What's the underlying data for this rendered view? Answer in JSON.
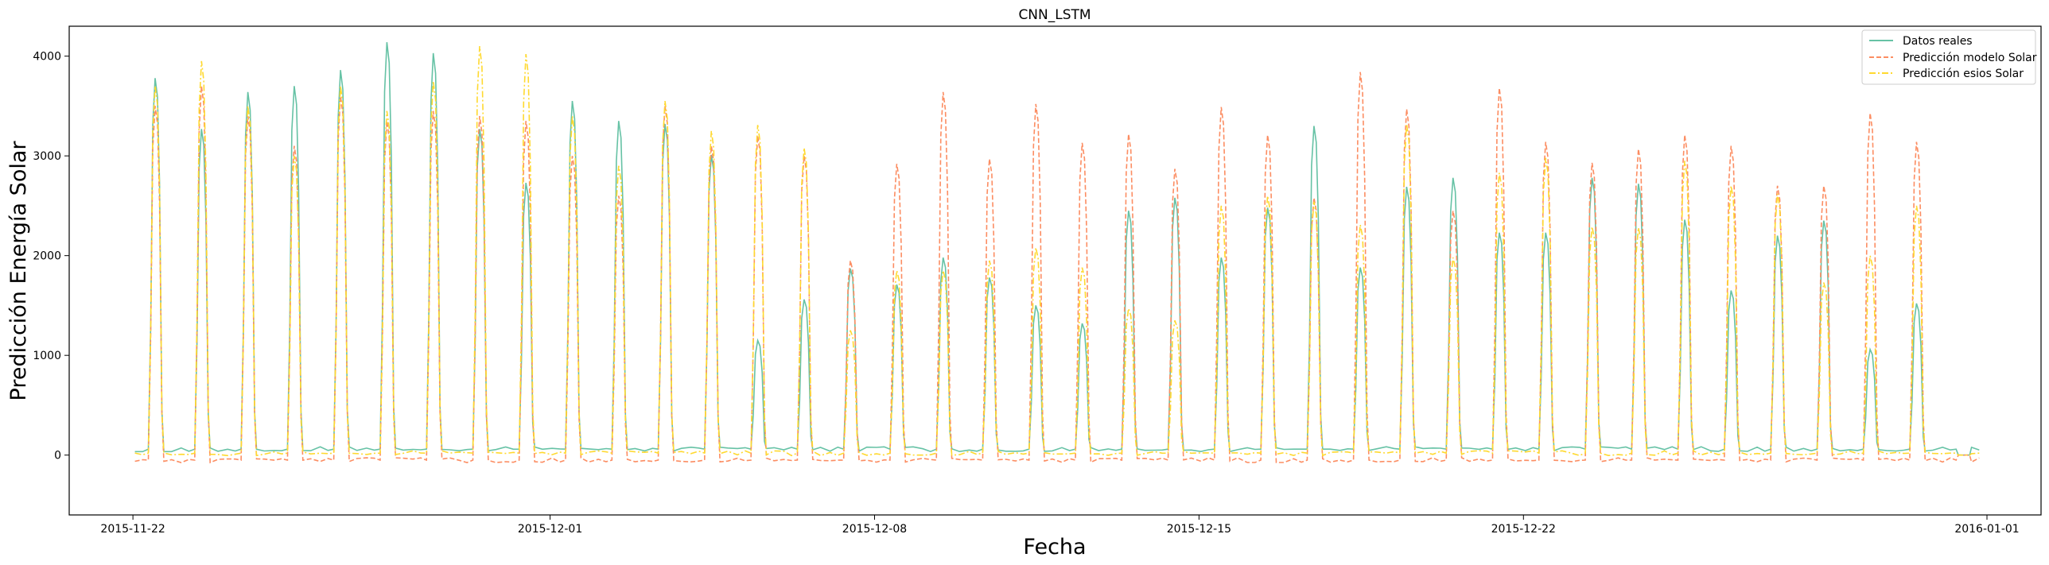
{
  "chart_data": {
    "type": "line",
    "title": "CNN_LSTM",
    "xlabel": "Fecha",
    "ylabel": "Predicción Energía Solar",
    "x_range": [
      "2015-11-20T15:00",
      "2016-01-02T04:00"
    ],
    "ylim": [
      -600,
      4300
    ],
    "x_ticks": [
      "2015-11-22",
      "2015-12-01",
      "2015-12-08",
      "2015-12-15",
      "2015-12-22",
      "2016-01-01"
    ],
    "y_ticks": [
      0,
      1000,
      2000,
      3000,
      4000
    ],
    "grid": false,
    "legend_position": "top-right",
    "days": [
      "2015-11-22",
      "2015-11-23",
      "2015-11-24",
      "2015-11-25",
      "2015-11-26",
      "2015-11-27",
      "2015-11-28",
      "2015-11-29",
      "2015-11-30",
      "2015-12-01",
      "2015-12-02",
      "2015-12-03",
      "2015-12-04",
      "2015-12-05",
      "2015-12-06",
      "2015-12-07",
      "2015-12-08",
      "2015-12-09",
      "2015-12-10",
      "2015-12-11",
      "2015-12-12",
      "2015-12-13",
      "2015-12-14",
      "2015-12-15",
      "2015-12-16",
      "2015-12-17",
      "2015-12-18",
      "2015-12-19",
      "2015-12-20",
      "2015-12-21",
      "2015-12-22",
      "2015-12-23",
      "2015-12-24",
      "2015-12-25",
      "2015-12-26",
      "2015-12-27",
      "2015-12-28",
      "2015-12-29",
      "2015-12-30",
      "2015-12-31"
    ],
    "series": [
      {
        "name": "Datos reales",
        "color": "#66c2a5",
        "dash": "solid",
        "night": 60,
        "daily_peak": [
          3780,
          3270,
          3640,
          3700,
          3860,
          4140,
          4030,
          3270,
          2730,
          3550,
          3350,
          3320,
          3010,
          1150,
          1560,
          1870,
          1710,
          1980,
          1780,
          1500,
          1320,
          2450,
          2580,
          1980,
          2480,
          3300,
          1880,
          2690,
          2780,
          2230,
          2230,
          2780,
          2720,
          2360,
          1650,
          2200,
          2350,
          1060,
          1520,
          0
        ]
      },
      {
        "name": "Predicción modelo Solar",
        "color": "#fc8d62",
        "dash": "dashed",
        "night": -50,
        "daily_peak": [
          3500,
          3700,
          3400,
          3100,
          3600,
          3350,
          3450,
          3400,
          3350,
          3000,
          2600,
          3500,
          3100,
          3200,
          3000,
          1950,
          2920,
          3640,
          2970,
          3520,
          3130,
          3220,
          2870,
          3490,
          3210,
          2580,
          3840,
          3470,
          2450,
          3680,
          3140,
          2930,
          3070,
          3210,
          3100,
          2700,
          2700,
          3430,
          3140,
          0
        ]
      },
      {
        "name": "Predicción esios Solar",
        "color": "#ffd92f",
        "dash": "dashdot",
        "night": 20,
        "daily_peak": [
          3700,
          3950,
          3500,
          3000,
          3700,
          3450,
          3750,
          4100,
          4020,
          3400,
          2900,
          3550,
          3250,
          3310,
          3080,
          1250,
          1850,
          1850,
          1950,
          2080,
          1880,
          1470,
          1350,
          2500,
          2600,
          2540,
          2310,
          3320,
          1980,
          2830,
          2980,
          2290,
          2280,
          2950,
          2700,
          2620,
          1730,
          2000,
          2500,
          0
        ]
      }
    ]
  }
}
